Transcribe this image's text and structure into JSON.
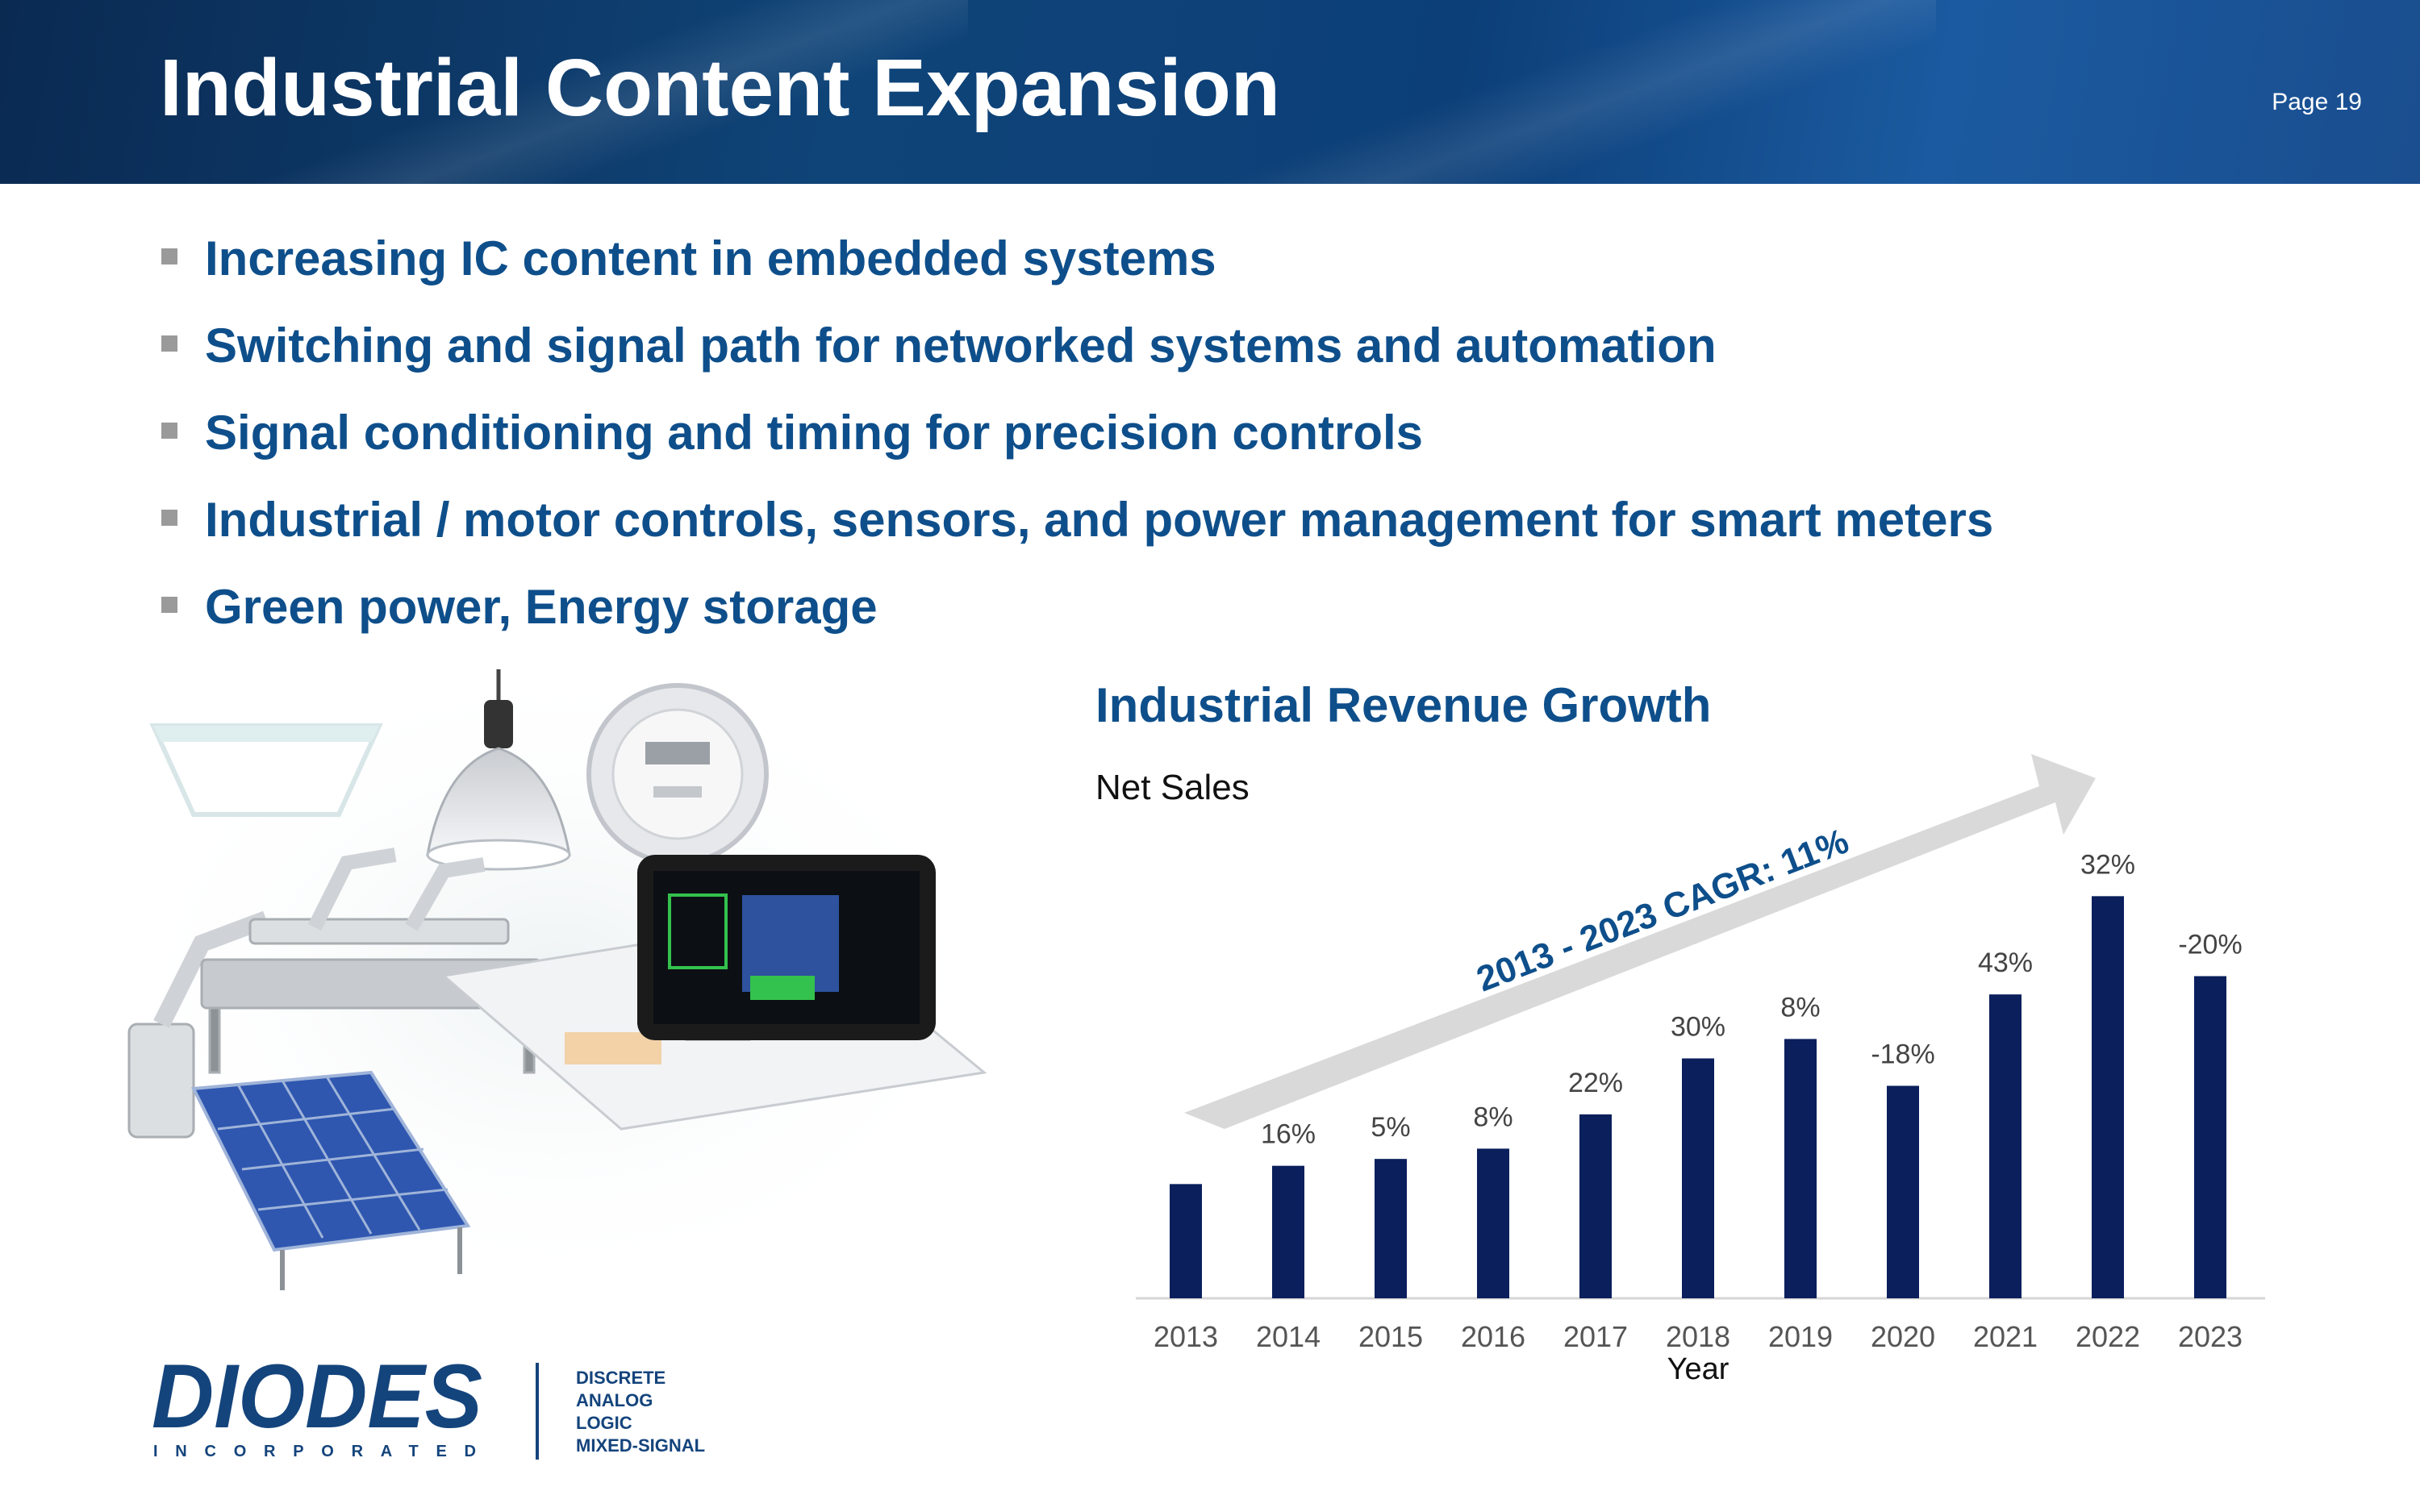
{
  "header": {
    "title": "Industrial Content Expansion",
    "page": "Page 19"
  },
  "bullets": [
    "Increasing IC content in embedded systems",
    "Switching and signal path for networked systems and automation",
    "Signal conditioning and timing for precision controls",
    "Industrial / motor controls, sensors, and power management for smart meters",
    "Green power, Energy storage"
  ],
  "chart": {
    "title": "Industrial Revenue Growth",
    "subtitle": "Net Sales"
  },
  "chart_data": {
    "type": "bar",
    "title": "Industrial Revenue Growth",
    "subtitle": "Net Sales",
    "xlabel": "Year",
    "ylabel": "",
    "categories": [
      "2013",
      "2014",
      "2015",
      "2016",
      "2017",
      "2018",
      "2019",
      "2020",
      "2021",
      "2022",
      "2023"
    ],
    "values": [
      1.0,
      1.16,
      1.22,
      1.31,
      1.61,
      2.1,
      2.27,
      1.86,
      2.66,
      3.52,
      2.82
    ],
    "data_labels": [
      "",
      "16%",
      "5%",
      "8%",
      "22%",
      "30%",
      "8%",
      "-18%",
      "43%",
      "32%",
      "-20%"
    ],
    "ylim": [
      0,
      3.6
    ],
    "annotation": "2013 - 2023 CAGR: 11%",
    "color": "#0a1f5c"
  },
  "logo": {
    "name": "DIODES",
    "sub": "INCORPORATED",
    "lines": [
      "DISCRETE",
      "ANALOG",
      "LOGIC",
      "MIXED-SIGNAL"
    ]
  }
}
